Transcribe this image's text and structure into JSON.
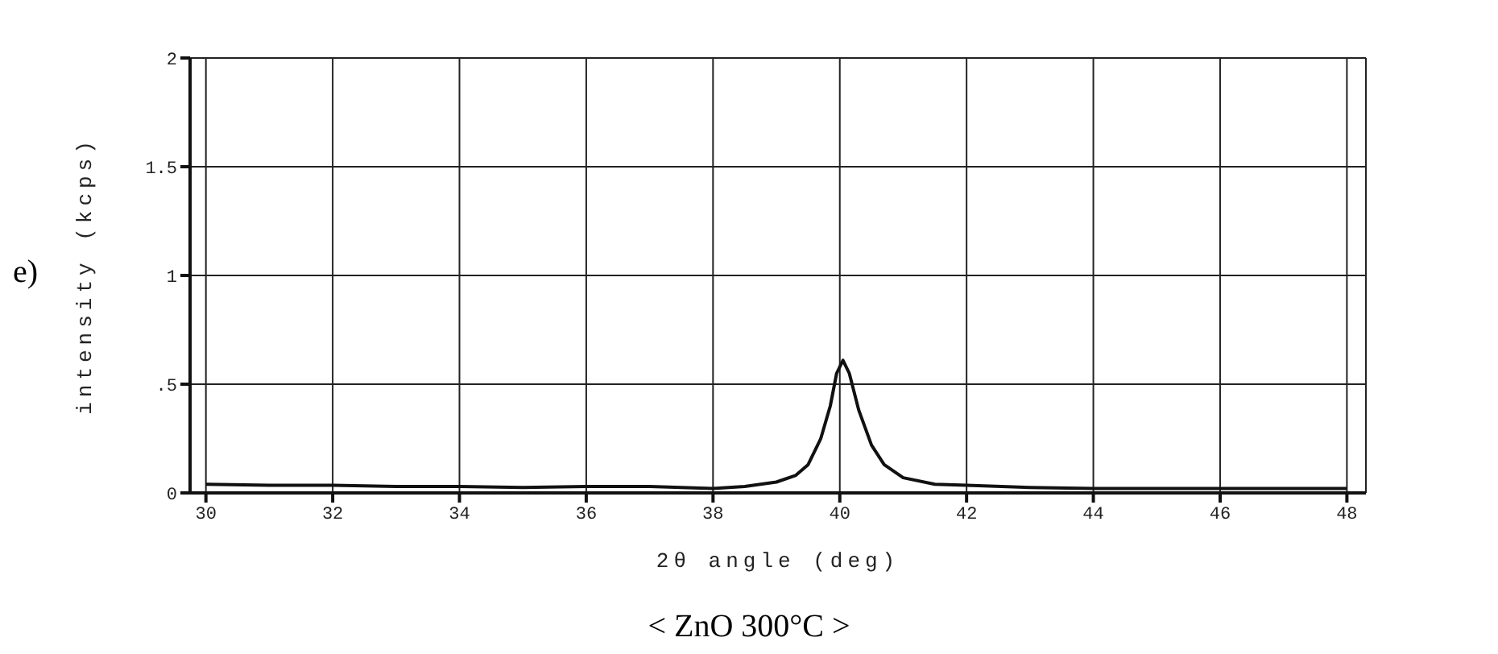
{
  "chart_data": {
    "type": "line",
    "xlabel": "2θ angle (deg)",
    "ylabel": "intensity (kcps)",
    "annotations": [
      "e)",
      "< ZnO 300°C >"
    ],
    "x": [
      30,
      31,
      32,
      33,
      34,
      35,
      36,
      37,
      38,
      38.5,
      39,
      39.3,
      39.5,
      39.7,
      39.85,
      39.95,
      40.05,
      40.15,
      40.3,
      40.5,
      40.7,
      41,
      41.5,
      42,
      43,
      44,
      45,
      46,
      47,
      48
    ],
    "series": [
      {
        "color": "#111111",
        "values": [
          0.04,
          0.035,
          0.035,
          0.03,
          0.03,
          0.025,
          0.03,
          0.03,
          0.02,
          0.03,
          0.05,
          0.08,
          0.13,
          0.25,
          0.4,
          0.55,
          0.61,
          0.55,
          0.38,
          0.22,
          0.13,
          0.07,
          0.04,
          0.035,
          0.025,
          0.02,
          0.02,
          0.02,
          0.02,
          0.02
        ]
      }
    ],
    "xlim": [
      29.75,
      48.3
    ],
    "xticks": [
      30,
      32,
      34,
      36,
      38,
      40,
      42,
      44,
      46,
      48
    ],
    "ylim": [
      0,
      2
    ],
    "yticks": [
      0,
      {
        "value": 0.5,
        "label": ".5"
      },
      1,
      1.5,
      2
    ],
    "grid": true,
    "marker": "none",
    "line_style": "solid"
  }
}
